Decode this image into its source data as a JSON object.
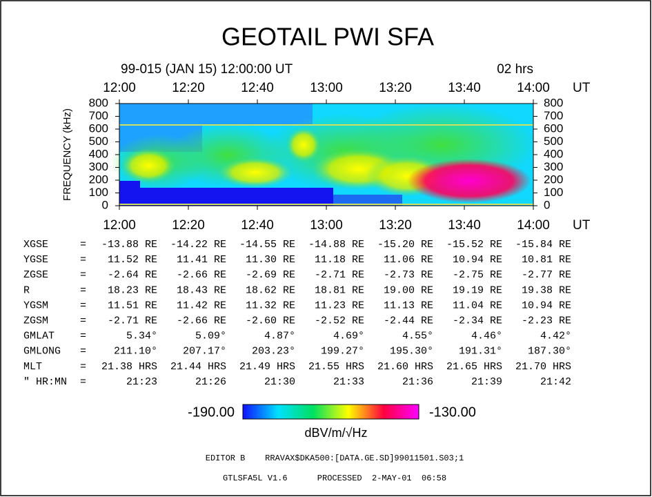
{
  "title": "GEOTAIL PWI SFA",
  "date": "99-015 (JAN 15) 12:00:00 UT",
  "duration": "02 hrs",
  "time_axis": {
    "ticks": [
      "12:00",
      "12:20",
      "12:40",
      "13:00",
      "13:20",
      "13:40",
      "14:00"
    ],
    "unit": "UT"
  },
  "freq_axis": {
    "label": "FREQUENCY (kHz)",
    "ticks": [
      800,
      700,
      600,
      500,
      400,
      300,
      200,
      100,
      0
    ]
  },
  "table": {
    "rows": [
      {
        "label": "XGSE",
        "eq": "=",
        "cells": [
          "-13.88 RE",
          "-14.22 RE",
          "-14.55 RE",
          "-14.88 RE",
          "-15.20 RE",
          "-15.52 RE",
          "-15.84 RE"
        ]
      },
      {
        "label": "YGSE",
        "eq": "=",
        "cells": [
          "11.52 RE",
          "11.41 RE",
          "11.30 RE",
          "11.18 RE",
          "11.06 RE",
          "10.94 RE",
          "10.81 RE"
        ]
      },
      {
        "label": "ZGSE",
        "eq": "=",
        "cells": [
          "-2.64 RE",
          "-2.66 RE",
          "-2.69 RE",
          "-2.71 RE",
          "-2.73 RE",
          "-2.75 RE",
          "-2.77 RE"
        ]
      },
      {
        "label": "R",
        "eq": "=",
        "cells": [
          "18.23 RE",
          "18.43 RE",
          "18.62 RE",
          "18.81 RE",
          "19.00 RE",
          "19.19 RE",
          "19.38 RE"
        ]
      },
      {
        "label": "YGSM",
        "eq": "=",
        "cells": [
          "11.51 RE",
          "11.42 RE",
          "11.32 RE",
          "11.23 RE",
          "11.13 RE",
          "11.04 RE",
          "10.94 RE"
        ]
      },
      {
        "label": "ZGSM",
        "eq": "=",
        "cells": [
          "-2.71 RE",
          "-2.66 RE",
          "-2.60 RE",
          "-2.52 RE",
          "-2.44 RE",
          "-2.34 RE",
          "-2.23 RE"
        ]
      },
      {
        "label": "GMLAT",
        "eq": "=",
        "cells": [
          "5.34°",
          "5.09°",
          "4.87°",
          "4.69°",
          "4.55°",
          "4.46°",
          "4.42°"
        ]
      },
      {
        "label": "GMLONG",
        "eq": "=",
        "cells": [
          "211.10°",
          "207.17°",
          "203.23°",
          "199.27°",
          "195.30°",
          "191.31°",
          "187.30°"
        ]
      },
      {
        "label": "MLT",
        "eq": "=",
        "cells": [
          "21.38 HRS",
          "21.44 HRS",
          "21.49 HRS",
          "21.55 HRS",
          "21.60 HRS",
          "21.65 HRS",
          "21.70 HRS"
        ]
      },
      {
        "label": "\" HR:MN",
        "eq": "=",
        "cells": [
          "21:23",
          "21:26",
          "21:30",
          "21:33",
          "21:36",
          "21:39",
          "21:42"
        ]
      }
    ]
  },
  "colorbar": {
    "min": "-190.00",
    "max": "-130.00",
    "unit": "dBV/m/√Hz"
  },
  "footer": [
    "EDITOR B    RRAVAX$DKA500:[DATA.GE.SD]99011501.S03;1",
    "GTLSFA5L V1.6      PROCESSED  2-MAY-01  06:58"
  ]
}
